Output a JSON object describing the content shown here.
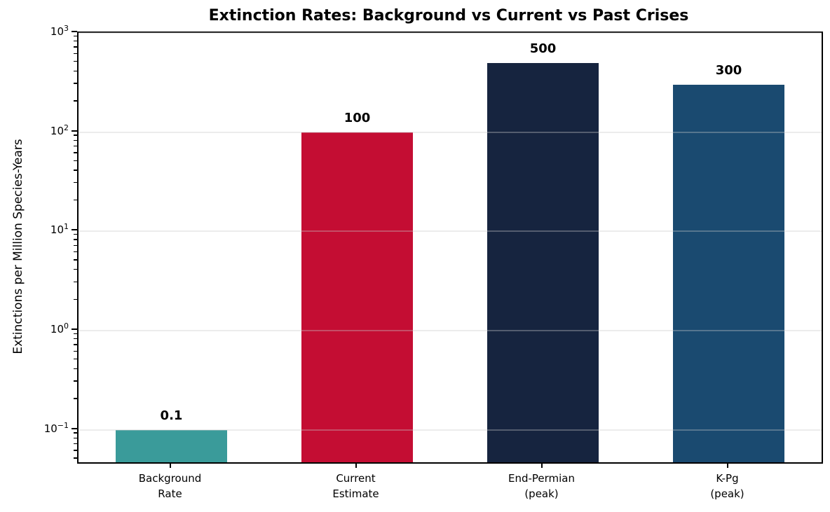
{
  "chart_data": {
    "type": "bar",
    "title": "Extinction Rates: Background vs Current vs Past Crises",
    "xlabel": "",
    "ylabel": "Extinctions per Million Species-Years",
    "categories": [
      "Background Rate",
      "Current Estimate",
      "End-Permian (peak)",
      "K-Pg (peak)"
    ],
    "category_lines": [
      [
        "Background",
        "Rate"
      ],
      [
        "Current",
        "Estimate"
      ],
      [
        "End-Permian",
        "(peak)"
      ],
      [
        "K-Pg",
        "(peak)"
      ]
    ],
    "values": [
      0.1,
      100,
      500,
      300
    ],
    "bar_labels": [
      "0.1",
      "100",
      "500",
      "300"
    ],
    "bar_colors": [
      "#3A9B9A",
      "#C40D33",
      "#16243F",
      "#1A4A70"
    ],
    "yscale": "log",
    "ylim": [
      0.047,
      1000
    ],
    "ytick_exponents": [
      3,
      2,
      1,
      0,
      -1
    ],
    "grid": "horizontal-major",
    "legend": "none",
    "bar_width_ratio": 0.6,
    "colors": {
      "background": "#FFFFFF",
      "axis": "#000000",
      "grid": "rgba(200,200,200,0.35)",
      "text": "#000000"
    }
  }
}
